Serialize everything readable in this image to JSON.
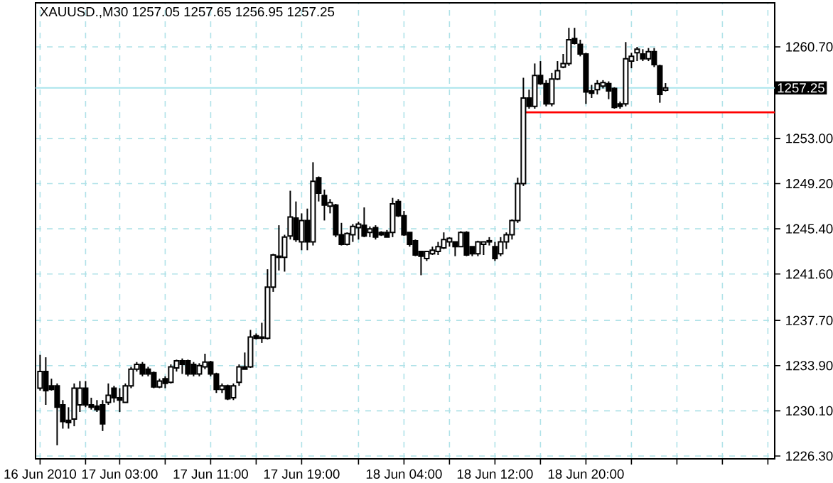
{
  "chart_data": {
    "type": "candlestick",
    "title": "XAUUSD.,M30  1257.05 1257.65 1256.95 1257.25",
    "x": [
      "2010-06-16T20:00",
      "2010-06-16T20:30",
      "2010-06-16T21:00",
      "2010-06-16T21:30",
      "2010-06-16T22:00",
      "2010-06-16T22:30",
      "2010-06-16T23:00",
      "2010-06-16T23:30",
      "2010-06-17T00:00",
      "2010-06-17T00:30",
      "2010-06-17T01:00",
      "2010-06-17T01:30",
      "2010-06-17T02:00",
      "2010-06-17T02:30",
      "2010-06-17T03:00",
      "2010-06-17T03:30",
      "2010-06-17T04:00",
      "2010-06-17T04:30",
      "2010-06-17T05:00",
      "2010-06-17T05:30",
      "2010-06-17T06:00",
      "2010-06-17T06:30",
      "2010-06-17T07:00",
      "2010-06-17T07:30",
      "2010-06-17T08:00",
      "2010-06-17T08:30",
      "2010-06-17T09:00",
      "2010-06-17T09:30",
      "2010-06-17T10:00",
      "2010-06-17T10:30",
      "2010-06-17T11:00",
      "2010-06-17T11:30",
      "2010-06-17T12:00",
      "2010-06-17T12:30",
      "2010-06-17T13:00",
      "2010-06-17T13:30",
      "2010-06-17T14:00",
      "2010-06-17T14:30",
      "2010-06-17T15:00",
      "2010-06-17T15:30",
      "2010-06-17T16:00",
      "2010-06-17T16:30",
      "2010-06-17T17:00",
      "2010-06-17T17:30",
      "2010-06-17T18:00",
      "2010-06-17T18:30",
      "2010-06-17T19:00",
      "2010-06-17T19:30",
      "2010-06-17T20:00",
      "2010-06-17T20:30",
      "2010-06-17T21:00",
      "2010-06-17T21:30",
      "2010-06-17T22:00",
      "2010-06-17T22:30",
      "2010-06-17T23:00",
      "2010-06-17T23:30",
      "2010-06-18T00:00",
      "2010-06-18T00:30",
      "2010-06-18T01:00",
      "2010-06-18T01:30",
      "2010-06-18T02:00",
      "2010-06-18T02:30",
      "2010-06-18T03:00",
      "2010-06-18T03:30",
      "2010-06-18T04:00",
      "2010-06-18T04:30",
      "2010-06-18T05:00",
      "2010-06-18T05:30",
      "2010-06-18T06:00",
      "2010-06-18T06:30",
      "2010-06-18T07:00",
      "2010-06-18T07:30",
      "2010-06-18T08:00",
      "2010-06-18T08:30",
      "2010-06-18T09:00",
      "2010-06-18T09:30",
      "2010-06-18T10:00",
      "2010-06-18T10:30",
      "2010-06-18T11:00",
      "2010-06-18T11:30",
      "2010-06-18T12:00",
      "2010-06-18T12:30",
      "2010-06-18T13:00",
      "2010-06-18T13:30",
      "2010-06-18T14:00",
      "2010-06-18T14:30",
      "2010-06-18T15:00",
      "2010-06-18T15:30",
      "2010-06-18T16:00",
      "2010-06-18T16:30",
      "2010-06-18T17:00",
      "2010-06-18T17:30",
      "2010-06-18T18:00",
      "2010-06-18T18:30",
      "2010-06-18T19:00",
      "2010-06-18T19:30",
      "2010-06-18T20:00",
      "2010-06-18T20:30",
      "2010-06-18T21:00",
      "2010-06-18T21:30",
      "2010-06-18T22:00",
      "2010-06-18T22:30",
      "2010-06-18T23:00",
      "2010-06-18T23:30",
      "2010-06-19T00:00",
      "2010-06-19T00:30",
      "2010-06-19T01:00",
      "2010-06-19T01:30",
      "2010-06-19T02:00",
      "2010-06-19T02:30",
      "2010-06-19T03:00"
    ],
    "ohlc": [
      [
        1232.0,
        1234.8,
        1231.8,
        1233.4
      ],
      [
        1233.4,
        1234.6,
        1230.6,
        1231.8
      ],
      [
        1232.2,
        1232.8,
        1231.8,
        1231.9
      ],
      [
        1232.2,
        1232.4,
        1227.2,
        1230.4
      ],
      [
        1230.6,
        1231.0,
        1228.6,
        1229.2
      ],
      [
        1229.3,
        1230.4,
        1228.6,
        1229.1
      ],
      [
        1229.4,
        1232.4,
        1228.8,
        1232.0
      ],
      [
        1230.6,
        1232.6,
        1230.0,
        1232.0
      ],
      [
        1232.0,
        1232.6,
        1230.4,
        1230.6
      ],
      [
        1230.6,
        1231.2,
        1230.2,
        1230.4
      ],
      [
        1230.5,
        1231.0,
        1230.0,
        1230.2
      ],
      [
        1230.6,
        1231.0,
        1228.4,
        1229.0
      ],
      [
        1230.8,
        1232.4,
        1230.6,
        1231.4
      ],
      [
        1232.0,
        1232.2,
        1230.8,
        1231.2
      ],
      [
        1231.2,
        1232.0,
        1230.0,
        1231.0
      ],
      [
        1230.8,
        1232.4,
        1230.8,
        1232.2
      ],
      [
        1232.2,
        1233.8,
        1232.0,
        1233.6
      ],
      [
        1233.6,
        1234.2,
        1233.4,
        1234.0
      ],
      [
        1234.0,
        1234.2,
        1233.0,
        1233.2
      ],
      [
        1233.6,
        1233.8,
        1233.0,
        1233.2
      ],
      [
        1233.3,
        1233.4,
        1232.0,
        1232.1
      ],
      [
        1232.1,
        1232.8,
        1232.0,
        1232.6
      ],
      [
        1232.8,
        1233.0,
        1232.0,
        1232.4
      ],
      [
        1232.5,
        1234.0,
        1232.4,
        1233.8
      ],
      [
        1233.7,
        1234.4,
        1233.4,
        1234.3
      ],
      [
        1234.3,
        1234.5,
        1233.2,
        1234.0
      ],
      [
        1234.3,
        1234.4,
        1233.0,
        1233.2
      ],
      [
        1234.0,
        1234.2,
        1233.0,
        1233.2
      ],
      [
        1233.2,
        1234.1,
        1233.0,
        1233.9
      ],
      [
        1233.8,
        1234.9,
        1233.6,
        1234.2
      ],
      [
        1234.2,
        1234.3,
        1233.0,
        1233.2
      ],
      [
        1233.2,
        1233.3,
        1231.6,
        1231.9
      ],
      [
        1231.9,
        1232.4,
        1231.6,
        1232.2
      ],
      [
        1232.2,
        1232.3,
        1231.0,
        1231.1
      ],
      [
        1231.2,
        1232.4,
        1231.0,
        1232.2
      ],
      [
        1232.5,
        1234.0,
        1232.2,
        1233.8
      ],
      [
        1233.8,
        1235.0,
        1233.6,
        1233.6
      ],
      [
        1233.8,
        1236.9,
        1233.7,
        1236.3
      ],
      [
        1236.4,
        1236.6,
        1236.1,
        1236.2
      ],
      [
        1236.3,
        1237.5,
        1235.8,
        1236.2
      ],
      [
        1236.2,
        1242.0,
        1236.1,
        1240.5
      ],
      [
        1240.5,
        1243.3,
        1240.1,
        1243.2
      ],
      [
        1243.0,
        1245.7,
        1241.9,
        1243.1
      ],
      [
        1243.0,
        1244.9,
        1241.8,
        1244.7
      ],
      [
        1244.8,
        1248.6,
        1244.5,
        1246.4
      ],
      [
        1246.3,
        1247.7,
        1244.3,
        1244.5
      ],
      [
        1244.3,
        1246.7,
        1243.6,
        1246.1
      ],
      [
        1246.1,
        1247.1,
        1243.6,
        1244.3
      ],
      [
        1244.3,
        1251.0,
        1244.0,
        1249.4
      ],
      [
        1249.7,
        1249.8,
        1247.7,
        1248.4
      ],
      [
        1248.2,
        1248.7,
        1246.1,
        1247.4
      ],
      [
        1247.3,
        1247.9,
        1246.7,
        1247.6
      ],
      [
        1247.4,
        1247.5,
        1244.7,
        1244.9
      ],
      [
        1244.9,
        1245.9,
        1244.0,
        1244.1
      ],
      [
        1244.1,
        1245.1,
        1244.0,
        1245.0
      ],
      [
        1244.9,
        1245.8,
        1244.3,
        1245.6
      ],
      [
        1245.5,
        1246.0,
        1244.5,
        1245.8
      ],
      [
        1245.7,
        1247.2,
        1244.7,
        1244.8
      ],
      [
        1245.1,
        1245.6,
        1244.7,
        1245.4
      ],
      [
        1245.5,
        1245.7,
        1244.5,
        1244.7
      ],
      [
        1245.1,
        1245.2,
        1244.8,
        1244.9
      ],
      [
        1245.1,
        1245.3,
        1244.7,
        1244.7
      ],
      [
        1245.1,
        1248.0,
        1244.7,
        1247.5
      ],
      [
        1247.7,
        1247.9,
        1246.4,
        1246.5
      ],
      [
        1246.5,
        1246.9,
        1244.8,
        1244.9
      ],
      [
        1245.1,
        1245.1,
        1243.9,
        1244.1
      ],
      [
        1244.4,
        1244.5,
        1243.1,
        1243.2
      ],
      [
        1243.5,
        1243.5,
        1241.5,
        1243.1
      ],
      [
        1242.9,
        1243.5,
        1242.7,
        1243.5
      ],
      [
        1243.3,
        1243.9,
        1243.2,
        1243.6
      ],
      [
        1243.5,
        1244.3,
        1243.2,
        1243.9
      ],
      [
        1243.8,
        1245.1,
        1243.7,
        1244.5
      ],
      [
        1244.3,
        1244.7,
        1243.9,
        1244.6
      ],
      [
        1244.3,
        1244.3,
        1243.1,
        1243.9
      ],
      [
        1243.9,
        1245.2,
        1243.9,
        1245.1
      ],
      [
        1245.1,
        1245.2,
        1243.1,
        1243.2
      ],
      [
        1243.9,
        1243.9,
        1243.1,
        1243.3
      ],
      [
        1243.3,
        1244.4,
        1243.1,
        1244.3
      ],
      [
        1244.1,
        1244.3,
        1243.2,
        1244.3
      ],
      [
        1244.4,
        1244.7,
        1244.0,
        1244.3
      ],
      [
        1243.9,
        1244.3,
        1242.7,
        1242.9
      ],
      [
        1243.3,
        1244.7,
        1243.1,
        1244.3
      ],
      [
        1244.3,
        1245.1,
        1243.7,
        1244.9
      ],
      [
        1244.9,
        1246.2,
        1244.5,
        1246.1
      ],
      [
        1246.1,
        1249.7,
        1245.9,
        1249.2
      ],
      [
        1249.2,
        1258.1,
        1249.0,
        1256.4
      ],
      [
        1256.4,
        1257.1,
        1255.5,
        1255.7
      ],
      [
        1255.7,
        1259.3,
        1255.5,
        1258.3
      ],
      [
        1258.3,
        1259.5,
        1257.5,
        1257.6
      ],
      [
        1257.6,
        1257.9,
        1255.7,
        1255.9
      ],
      [
        1255.9,
        1258.5,
        1255.7,
        1258.0
      ],
      [
        1258.0,
        1259.5,
        1257.9,
        1258.7
      ],
      [
        1259.0,
        1260.1,
        1258.9,
        1259.3
      ],
      [
        1259.3,
        1262.3,
        1259.1,
        1261.3
      ],
      [
        1261.4,
        1262.3,
        1260.9,
        1261.0
      ],
      [
        1260.9,
        1261.3,
        1259.9,
        1260.1
      ],
      [
        1260.1,
        1260.2,
        1255.9,
        1256.9
      ],
      [
        1257.0,
        1257.5,
        1256.4,
        1256.8
      ],
      [
        1257.1,
        1257.9,
        1256.7,
        1257.6
      ],
      [
        1257.4,
        1257.9,
        1257.2,
        1257.7
      ],
      [
        1257.6,
        1257.8,
        1256.3,
        1257.0
      ],
      [
        1257.2,
        1257.3,
        1255.5,
        1255.6
      ],
      [
        1255.9,
        1256.1,
        1255.5,
        1255.7
      ],
      [
        1255.9,
        1261.1,
        1255.7,
        1259.7
      ],
      [
        1259.5,
        1260.2,
        1258.9,
        1259.9
      ],
      [
        1260.2,
        1260.7,
        1259.5,
        1260.5
      ],
      [
        1260.1,
        1260.5,
        1259.5,
        1259.7
      ],
      [
        1259.7,
        1260.6,
        1259.5,
        1260.3
      ],
      [
        1260.3,
        1260.6,
        1259.0,
        1259.2
      ],
      [
        1259.1,
        1259.2,
        1256.0,
        1256.7
      ],
      [
        1257.05,
        1257.65,
        1256.95,
        1257.25
      ]
    ],
    "series": [
      {
        "type": "line",
        "x": [
          "2010-06-18T14:30",
          "2010-06-19T12:36"
        ],
        "values": [
          1255.2,
          1255.2
        ],
        "color": "#ff0000"
      }
    ],
    "ref_lines": [
      {
        "axis": "y",
        "value": 1257.25,
        "label": "1257.25",
        "color": "#a8e4ec"
      }
    ],
    "xlim": [
      "2010-06-16T19:36",
      "2010-06-19T12:36"
    ],
    "xticks": [
      {
        "value": "2010-06-16T20:00",
        "label": "16 Jun 2010"
      },
      {
        "value": "2010-06-17T00:00",
        "label": null
      },
      {
        "value": "2010-06-17T03:00",
        "label": "17 Jun 03:00"
      },
      {
        "value": "2010-06-17T07:00",
        "label": null
      },
      {
        "value": "2010-06-17T11:00",
        "label": "17 Jun 11:00"
      },
      {
        "value": "2010-06-17T15:00",
        "label": null
      },
      {
        "value": "2010-06-17T19:00",
        "label": "17 Jun 19:00"
      },
      {
        "value": "2010-06-18T00:00",
        "label": null
      },
      {
        "value": "2010-06-18T04:00",
        "label": "18 Jun 04:00"
      },
      {
        "value": "2010-06-18T08:00",
        "label": null
      },
      {
        "value": "2010-06-18T12:00",
        "label": "18 Jun 12:00"
      },
      {
        "value": "2010-06-18T16:00",
        "label": null
      },
      {
        "value": "2010-06-18T20:00",
        "label": "18 Jun 20:00"
      },
      {
        "value": "2010-06-19T00:00",
        "label": null
      },
      {
        "value": "2010-06-19T04:00",
        "label": null
      },
      {
        "value": "2010-06-19T08:00",
        "label": null
      },
      {
        "value": "2010-06-19T12:00",
        "label": null
      }
    ],
    "ylim": [
      1226.06,
      1264.4
    ],
    "yticks": [
      {
        "value": 1226.3,
        "label": "1226.30"
      },
      {
        "value": 1230.1,
        "label": "1230.10"
      },
      {
        "value": 1233.9,
        "label": "1233.90"
      },
      {
        "value": 1237.7,
        "label": "1237.70"
      },
      {
        "value": 1241.6,
        "label": "1241.60"
      },
      {
        "value": 1245.4,
        "label": "1245.40"
      },
      {
        "value": 1249.2,
        "label": "1249.20"
      },
      {
        "value": 1253.0,
        "label": "1253.00"
      },
      {
        "value": 1260.7,
        "label": "1260.70"
      }
    ],
    "grid": true
  }
}
